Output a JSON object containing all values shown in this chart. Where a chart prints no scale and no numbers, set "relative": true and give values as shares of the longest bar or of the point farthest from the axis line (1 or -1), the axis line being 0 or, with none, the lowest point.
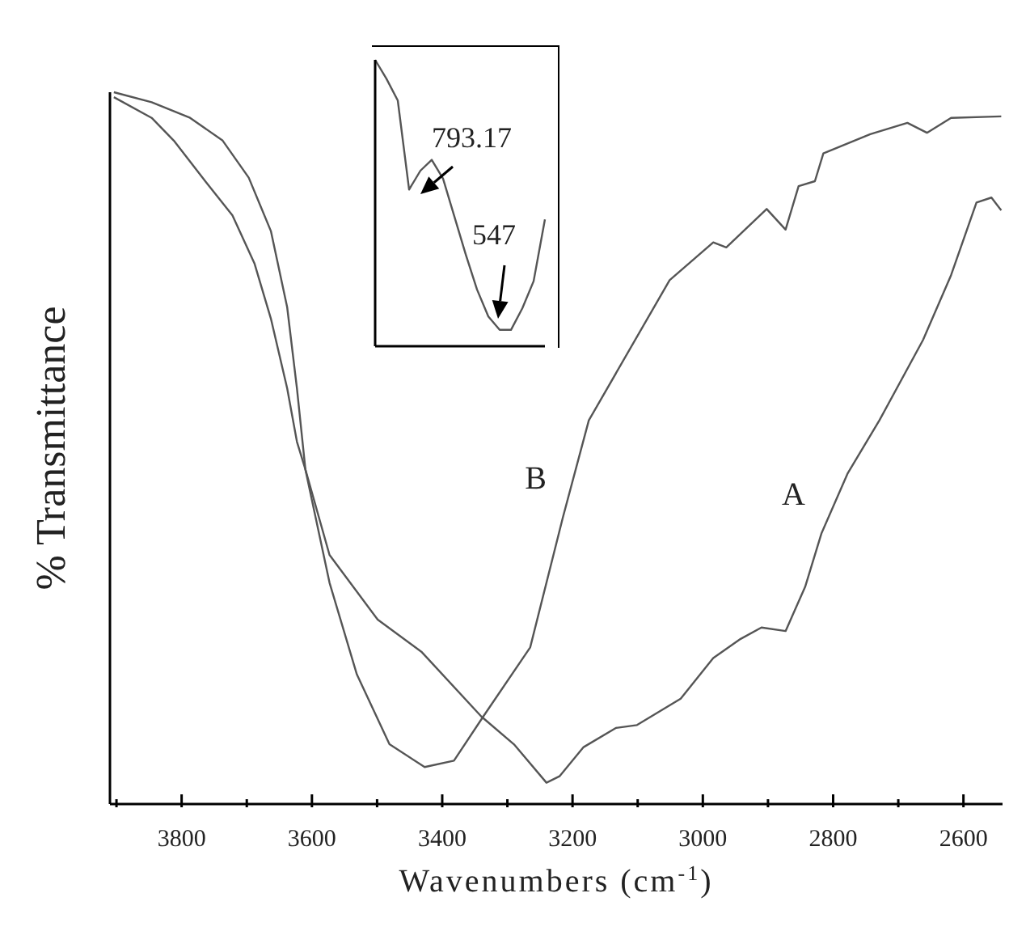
{
  "chart_data": [
    {
      "type": "line",
      "relative": true,
      "xlabel": "Wavenumbers (cm$^{-1}$)",
      "ylabel": "% Transmittance",
      "xlim": [
        3910,
        2540
      ],
      "xticks": [
        {
          "value": 3900,
          "label": null
        },
        3800,
        {
          "value": 3700,
          "label": null
        },
        3600,
        {
          "value": 3500,
          "label": null
        },
        3400,
        {
          "value": 3300,
          "label": null
        },
        3200,
        {
          "value": 3100,
          "label": null
        },
        3000,
        {
          "value": 2900,
          "label": null
        },
        2800,
        {
          "value": 2700,
          "label": null
        },
        2600
      ],
      "grid": false,
      "legend": false,
      "marker": "none",
      "line_style": "solid",
      "series": [
        {
          "name": "A",
          "color": "#555555",
          "x": [
            3904,
            3846,
            3812,
            3762,
            3722,
            3688,
            3663,
            3638,
            3623,
            3610,
            3573,
            3499,
            3432,
            3340,
            3290,
            3240,
            3220,
            3183,
            3133,
            3101,
            3034,
            2984,
            2942,
            2910,
            2873,
            2843,
            2818,
            2778,
            2729,
            2662,
            2619,
            2580,
            2557,
            2542
          ],
          "values": [
            0.993,
            0.964,
            0.932,
            0.873,
            0.827,
            0.759,
            0.682,
            0.584,
            0.509,
            0.47,
            0.35,
            0.259,
            0.214,
            0.123,
            0.084,
            0.03,
            0.039,
            0.08,
            0.107,
            0.111,
            0.148,
            0.205,
            0.232,
            0.248,
            0.243,
            0.305,
            0.38,
            0.464,
            0.539,
            0.652,
            0.743,
            0.845,
            0.852,
            0.834
          ]
        },
        {
          "name": "B",
          "color": "#555555",
          "x": [
            3904,
            3846,
            3787,
            3737,
            3697,
            3663,
            3638,
            3623,
            3610,
            3573,
            3531,
            3481,
            3427,
            3382,
            3337,
            3265,
            3215,
            3175,
            3051,
            2984,
            2964,
            2902,
            2873,
            2853,
            2828,
            2815,
            2743,
            2686,
            2656,
            2619,
            2542
          ],
          "values": [
            1,
            0.986,
            0.964,
            0.932,
            0.88,
            0.805,
            0.698,
            0.584,
            0.47,
            0.311,
            0.182,
            0.084,
            0.052,
            0.061,
            0.123,
            0.22,
            0.402,
            0.539,
            0.736,
            0.789,
            0.782,
            0.836,
            0.807,
            0.868,
            0.875,
            0.914,
            0.941,
            0.957,
            0.943,
            0.964,
            0.966
          ]
        }
      ]
    },
    {
      "type": "line",
      "relative": true,
      "categories": [
        null,
        null,
        null,
        null,
        null,
        null,
        null,
        null,
        null,
        null,
        null,
        null,
        null,
        null,
        null,
        null
      ],
      "marker": "none",
      "line_style": "solid",
      "series": [
        {
          "color": "#555555",
          "values": [
            1,
            0.934,
            0.858,
            0.547,
            0.613,
            0.651,
            0.585,
            0.453,
            0.321,
            0.198,
            0.104,
            0.057,
            0.057,
            0.132,
            0.227,
            0.443
          ]
        }
      ],
      "annotations": [
        "793.17",
        "547"
      ]
    }
  ]
}
